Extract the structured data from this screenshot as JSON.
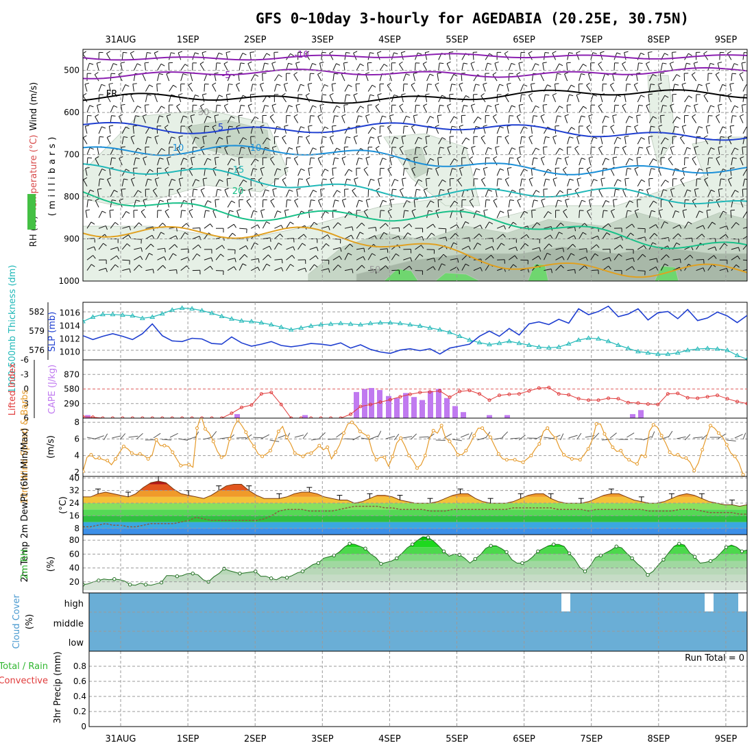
{
  "title": "GFS 0~10day 3-hourly for AGEDABIA (20.25E, 30.75N)",
  "colors": {
    "rh_light": "#e6f0e6",
    "rh_mid": "#c6d6c6",
    "rh_dark": "#a8b8a8",
    "rh_green": "#6fd66f",
    "thickness": "#20b8b8",
    "slp": "#1e3ed0",
    "cape": "#c07af0",
    "lifted": "#e03a3a",
    "wind10": "#e59a2a",
    "rh2m": "#2fb62f",
    "cloud": "#6aaed6"
  },
  "chart_data": [
    {
      "type": "heatmap",
      "panel": "upper-air",
      "xticks": [
        "31AUG",
        "1SEP",
        "2SEP",
        "3SEP",
        "4SEP",
        "5SEP",
        "6SEP",
        "7SEP",
        "8SEP",
        "9SEP"
      ],
      "ylabel_parts": [
        "RH (%)",
        "Temperature (°C)",
        "Wind (m/s)"
      ],
      "yaxis_name": "(millibars)",
      "yticks": [
        "500",
        "600",
        "700",
        "800",
        "900",
        "1000"
      ],
      "ylim": [
        450,
        1000
      ],
      "contour_labels": [
        "-10",
        "-5",
        "FR",
        "5",
        "10",
        "15",
        "20",
        "10",
        "30",
        "50"
      ],
      "isotherms": [
        {
          "label": "-10",
          "color": "#8b1fb0",
          "level_start": 470,
          "level_end": 465
        },
        {
          "label": "-5",
          "color": "#8b1fb0",
          "level_start": 510,
          "level_end": 503
        },
        {
          "label": "FR",
          "color": "#000000",
          "level_start": 570,
          "level_end": 555
        },
        {
          "label": "5",
          "color": "#1e3ed0",
          "level_start": 630,
          "level_end": 650
        },
        {
          "label": "10",
          "color": "#1a8fd8",
          "level_start": 680,
          "level_end": 745
        },
        {
          "label": "15",
          "color": "#20b8b8",
          "level_start": 740,
          "level_end": 820
        },
        {
          "label": "20",
          "color": "#18c088",
          "level_start": 800,
          "level_end": 910
        },
        {
          "label": "25",
          "color": "#e0a020",
          "level_start": 860,
          "level_end": 990
        }
      ]
    },
    {
      "type": "line",
      "panel": "thickness-slp",
      "ylabel_left": "1000-500mb Thickness (dm)",
      "yticks_left": [
        "582",
        "579",
        "576"
      ],
      "ylim_left": [
        574.5,
        583.5
      ],
      "ylabel_right": "SLP (mb)",
      "yticks_right": [
        "1016",
        "1014",
        "1012",
        "1010"
      ],
      "ylim_right": [
        1008.8,
        1017.6
      ],
      "series": [
        {
          "name": "1000-500mb Thickness (dm)",
          "axis": "left",
          "values": [
            580.5,
            581.2,
            581.6,
            581.6,
            581.5,
            581.4,
            581.0,
            581.2,
            581.7,
            582.3,
            582.6,
            582.5,
            582.2,
            581.8,
            581.3,
            580.9,
            580.6,
            580.5,
            580.3,
            580.0,
            579.6,
            579.2,
            579.5,
            579.8,
            580.0,
            580.1,
            580.2,
            580.1,
            580.0,
            580.2,
            580.3,
            580.3,
            580.2,
            580.0,
            579.8,
            579.5,
            579.2,
            578.8,
            578.2,
            577.6,
            577.2,
            576.9,
            577.1,
            577.4,
            577.1,
            576.8,
            576.5,
            576.4,
            576.5,
            577.0,
            577.6,
            577.9,
            577.8,
            577.4,
            576.8,
            576.3,
            575.8,
            575.6,
            575.4,
            575.4,
            575.6,
            576.0,
            576.2,
            576.3,
            576.2,
            576.0,
            575.2,
            574.6
          ]
        },
        {
          "name": "SLP (mb)",
          "axis": "right",
          "values": [
            1012.5,
            1011.9,
            1012.4,
            1012.8,
            1012.4,
            1011.9,
            1012.8,
            1014.3,
            1012.5,
            1011.7,
            1011.6,
            1012.1,
            1012.0,
            1011.3,
            1011.2,
            1012.3,
            1011.4,
            1010.9,
            1011.2,
            1011.6,
            1011.0,
            1010.8,
            1011.0,
            1011.3,
            1011.2,
            1011.0,
            1011.4,
            1010.6,
            1011.1,
            1010.4,
            1010.0,
            1009.8,
            1010.3,
            1010.5,
            1010.2,
            1010.5,
            1009.7,
            1010.6,
            1010.9,
            1011.2,
            1012.4,
            1013.2,
            1012.4,
            1013.6,
            1012.6,
            1014.3,
            1014.6,
            1014.2,
            1015.0,
            1014.4,
            1016.6,
            1015.7,
            1016.2,
            1017.0,
            1015.4,
            1015.8,
            1016.6,
            1014.9,
            1016.0,
            1016.2,
            1015.1,
            1016.5,
            1014.8,
            1015.2,
            1016.1,
            1015.5,
            1014.5,
            1015.6
          ]
        }
      ]
    },
    {
      "type": "bar",
      "panel": "cape-lifted",
      "ylabel_left": "Lifted Index",
      "yticks_left": [
        "-6",
        "-3",
        "0",
        "3",
        "6"
      ],
      "ylim_left": [
        6,
        -6
      ],
      "ylabel_right": "CAPE (J/kg)",
      "yticks_right": [
        "870",
        "580",
        "290"
      ],
      "ylim_right": [
        0,
        1160
      ],
      "series": [
        {
          "name": "CAPE (J/kg)",
          "values": [
            0,
            0,
            0,
            0,
            0,
            0,
            0,
            0,
            0,
            0,
            0,
            0,
            0,
            0,
            0,
            0,
            0,
            0,
            0,
            0,
            0,
            0,
            0,
            0,
            0,
            0,
            0,
            0,
            0,
            0,
            0,
            0,
            0,
            0,
            0,
            0,
            0,
            0,
            0,
            0,
            0,
            0,
            0,
            0,
            0,
            0,
            0,
            0,
            0,
            0,
            0,
            0,
            0,
            0,
            0,
            0,
            0,
            0,
            0,
            0,
            0,
            0,
            0,
            0,
            0,
            0,
            0,
            0
          ]
        },
        {
          "name": "Lifted Index",
          "values": [
            5.7,
            5.8,
            6.0,
            6.0,
            6.0,
            6.0,
            6.0,
            6.0,
            6.0,
            6.0,
            6.0,
            6.0,
            6.0,
            6.0,
            6.0,
            5.0,
            3.8,
            3.3,
            1.0,
            0.7,
            3.2,
            6.0,
            6.0,
            6.0,
            6.0,
            6.0,
            6.0,
            5.2,
            3.6,
            3.2,
            2.7,
            2.2,
            1.6,
            1.1,
            0.7,
            0.6,
            0.4,
            1.7,
            0.5,
            0.3,
            1.0,
            2.3,
            1.3,
            1.1,
            1.0,
            0.4,
            -0.2,
            -0.3,
            1.0,
            1.2,
            2.0,
            2.3,
            2.3,
            1.9,
            2.0,
            2.8,
            2.9,
            3.1,
            3.2,
            1.0,
            0.9,
            1.8,
            1.9,
            1.6,
            1.3,
            2.0,
            2.6,
            3.0
          ]
        }
      ]
    },
    {
      "type": "line",
      "panel": "wind10m",
      "ylabel": "10m Wind Speed & Barbs",
      "unit": "(m/s)",
      "yticks": [
        "8",
        "6",
        "4",
        "2"
      ],
      "ylim": [
        1.5,
        8.5
      ],
      "series": [
        {
          "name": "10m Wind Speed",
          "values": [
            2.1,
            3.8,
            4.1,
            3.6,
            3.7,
            3.5,
            3.4,
            2.9,
            3.6,
            4.4,
            5.1,
            4.8,
            4.3,
            4.1,
            4.2,
            4.0,
            3.6,
            4.1,
            5.9,
            5.2,
            5.2,
            5.1,
            4.4,
            3.6,
            2.8,
            2.9,
            2.9,
            2.6,
            7.3,
            8.8,
            7.2,
            6.7,
            5.7,
            4.5,
            3.8,
            4.0,
            6.0,
            7.4,
            8.3,
            7.6,
            6.8,
            5.8,
            5.1,
            4.2,
            3.9,
            4.2,
            4.6,
            5.6,
            6.9,
            7.5,
            6.2,
            5.4,
            4.3,
            4.1,
            3.9,
            4.3,
            4.3,
            4.7,
            5.2,
            4.7,
            5.0,
            3.6,
            4.4,
            5.3,
            6.7,
            7.8,
            8.0,
            7.6,
            6.9,
            6.6,
            6.3,
            4.5,
            3.5,
            3.8,
            3.8,
            2.7,
            3.9,
            5.5,
            6.1,
            5.2,
            4.0,
            3.4,
            2.5,
            2.9,
            4.0,
            6.0,
            7.0,
            6.7,
            7.6,
            6.1,
            5.7,
            5.0,
            4.1,
            4.1,
            4.6,
            5.4,
            6.4,
            7.3,
            7.3,
            6.7,
            6.2,
            5.2,
            4.2,
            3.6,
            3.5,
            3.5,
            3.5,
            3.3,
            3.2,
            3.6,
            4.0,
            4.8,
            5.4,
            6.9,
            7.3,
            6.6,
            6.1,
            4.9,
            4.1,
            3.8,
            3.6,
            3.6,
            3.5,
            4.1,
            4.8,
            5.9,
            7.8,
            7.8,
            6.6,
            5.8,
            5.0,
            4.5,
            4.6,
            3.8,
            3.5,
            3.2,
            3.0,
            4.1,
            3.9,
            6.9,
            7.7,
            7.4,
            6.4,
            5.5,
            4.4,
            4.0,
            4.1,
            3.7,
            3.7,
            3.2,
            2.2,
            3.1,
            4.7,
            6.2,
            7.6,
            7.3,
            6.7,
            6.2,
            5.3,
            4.3,
            3.9,
            3.1,
            1.7,
            1.1
          ]
        }
      ]
    },
    {
      "type": "area",
      "panel": "temperature2m",
      "ylabel": "2m Temp 2m DewPt (6hr Min/Max)",
      "unit": "(°C)",
      "yticks": [
        "40",
        "32",
        "24",
        "16",
        "8"
      ],
      "ylim": [
        4,
        41
      ],
      "series": [
        {
          "name": "2m Temp",
          "values": [
            28,
            28,
            30,
            31,
            30,
            29,
            28,
            30,
            34,
            37,
            38,
            37,
            33,
            30,
            29,
            28,
            27,
            29,
            32,
            35,
            36,
            36,
            32,
            29,
            27,
            27,
            27,
            28,
            30,
            31,
            31,
            30,
            28,
            27,
            26,
            26,
            24,
            25,
            27,
            29,
            29,
            28,
            26,
            25,
            24,
            24,
            24,
            25,
            27,
            29,
            30,
            30,
            27,
            25,
            24,
            24,
            24,
            25,
            27,
            29,
            30,
            30,
            27,
            25,
            24,
            24,
            24,
            25,
            27,
            29,
            30,
            30,
            28,
            26,
            25,
            24,
            24,
            25,
            27,
            29,
            30,
            29,
            27,
            25,
            24,
            23,
            23,
            22,
            23
          ]
        },
        {
          "name": "2m DewPt",
          "values": [
            9,
            9,
            10,
            11,
            10,
            10,
            9,
            9,
            10,
            11,
            11,
            11,
            11,
            12,
            13,
            15,
            14,
            13,
            13,
            13,
            13,
            13,
            13,
            13,
            14,
            16,
            19,
            20,
            20,
            20,
            19,
            19,
            19,
            19,
            20,
            21,
            22,
            22,
            22,
            22,
            21,
            21,
            20,
            20,
            20,
            20,
            19,
            19,
            19,
            20,
            20,
            20,
            20,
            20,
            20,
            20,
            20,
            21,
            21,
            21,
            21,
            21,
            21,
            20,
            20,
            20,
            20,
            19,
            20,
            20,
            20,
            20,
            20,
            20,
            20,
            19,
            19,
            19,
            19,
            20,
            20,
            20,
            19,
            18,
            18,
            18,
            18,
            17,
            17
          ]
        }
      ]
    },
    {
      "type": "area",
      "panel": "rh2m",
      "ylabel": "2m RH",
      "unit": "(%)",
      "yticks": [
        "80",
        "60",
        "40",
        "20"
      ],
      "ylim": [
        4,
        88
      ],
      "series": [
        {
          "name": "2m RH",
          "values": [
            16,
            17,
            20,
            22,
            24,
            23,
            24,
            23,
            21,
            16,
            15,
            18,
            16,
            15,
            17,
            19,
            29,
            29,
            28,
            29,
            32,
            32,
            30,
            23,
            20,
            27,
            32,
            39,
            36,
            34,
            32,
            33,
            34,
            35,
            28,
            28,
            25,
            23,
            27,
            26,
            29,
            33,
            35,
            40,
            45,
            47,
            54,
            56,
            58,
            63,
            70,
            75,
            74,
            71,
            68,
            60,
            55,
            46,
            48,
            50,
            54,
            61,
            69,
            74,
            80,
            85,
            84,
            79,
            72,
            64,
            57,
            60,
            59,
            54,
            47,
            53,
            59,
            68,
            72,
            72,
            68,
            63,
            52,
            47,
            47,
            50,
            56,
            64,
            68,
            72,
            74,
            74,
            71,
            61,
            53,
            41,
            35,
            43,
            55,
            58,
            62,
            66,
            71,
            69,
            61,
            54,
            46,
            40,
            30,
            35,
            44,
            52,
            62,
            71,
            75,
            73,
            62,
            56,
            47,
            48,
            50,
            54,
            62,
            70,
            73,
            70,
            64,
            66
          ]
        }
      ]
    },
    {
      "type": "heatmap",
      "panel": "cloud",
      "ylabel": "Cloud Cover",
      "unit": "(%)",
      "yticks": [
        "high",
        "middle",
        "low"
      ]
    },
    {
      "type": "bar",
      "panel": "precip",
      "ylabel": "3hr Precip (mm)",
      "legend": [
        "Total / Rain",
        "Convective"
      ],
      "yticks": [
        "0.8",
        "0.6",
        "0.4",
        "0.2",
        "0"
      ],
      "ylim": [
        0,
        1
      ],
      "annotation": "Run Total = 0",
      "series": [
        {
          "name": "3hr Precip",
          "values": [
            0
          ]
        }
      ]
    }
  ]
}
